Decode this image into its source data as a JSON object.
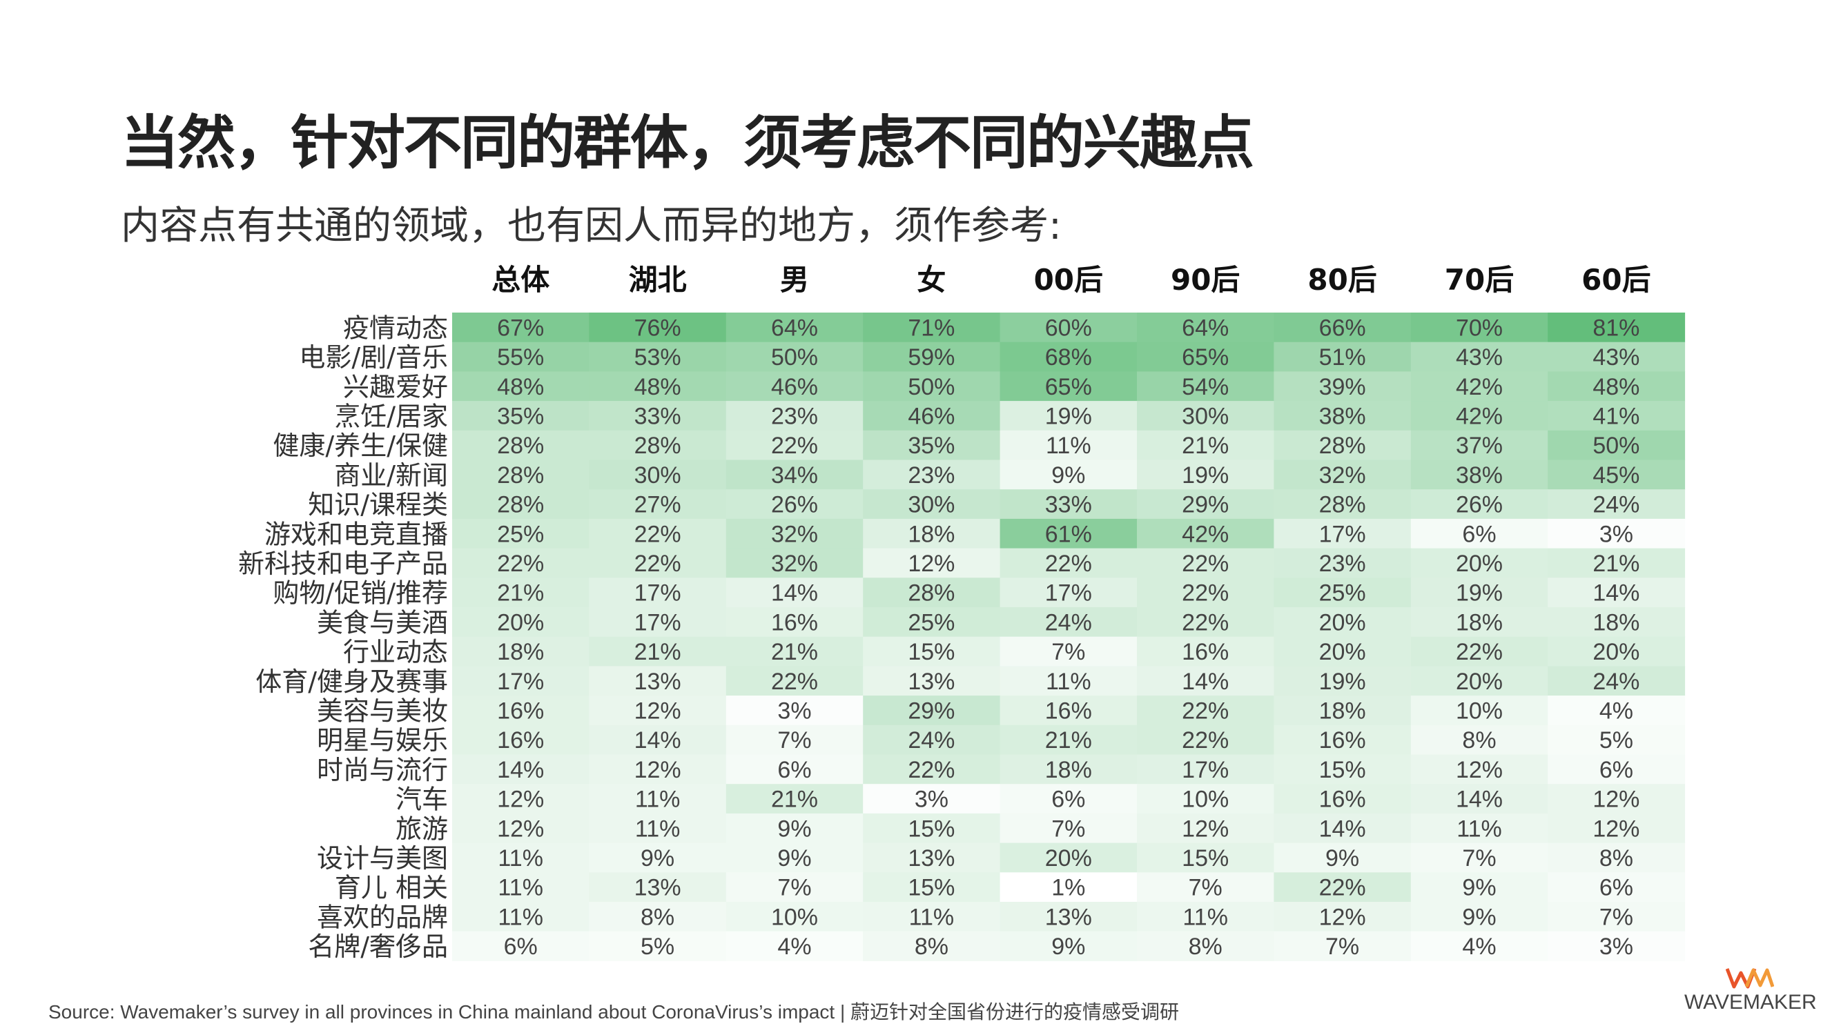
{
  "header": {
    "title": "当然，针对不同的群体，须考虑不同的兴趣点",
    "subtitle": "内容点有共通的领域，也有因人而异的地方，须作参考:"
  },
  "footer": {
    "source": "Source: Wavemaker’s survey in all provinces in China mainland about CoronaVirus’s impact | 蔚迈针对全国省份进行的疫情感受调研",
    "logo_mark": "WM",
    "logo_text": "WAVEMAKER"
  },
  "colors": {
    "heat_low": "#ffffff",
    "heat_high": "#63be7b",
    "text": "#333333"
  },
  "chart_data": {
    "type": "heatmap",
    "columns": [
      "总体",
      "湖北",
      "男",
      "女",
      "00后",
      "90后",
      "80后",
      "70后",
      "60后"
    ],
    "rows": [
      {
        "label": "疫情动态",
        "values": [
          67,
          76,
          64,
          71,
          60,
          64,
          66,
          70,
          81
        ]
      },
      {
        "label": "电影/剧/音乐",
        "values": [
          55,
          53,
          50,
          59,
          68,
          65,
          51,
          43,
          43
        ]
      },
      {
        "label": "兴趣爱好",
        "values": [
          48,
          48,
          46,
          50,
          65,
          54,
          39,
          42,
          48
        ]
      },
      {
        "label": "烹饪/居家",
        "values": [
          35,
          33,
          23,
          46,
          19,
          30,
          38,
          42,
          41
        ]
      },
      {
        "label": "健康/养生/保健",
        "values": [
          28,
          28,
          22,
          35,
          11,
          21,
          28,
          37,
          50
        ]
      },
      {
        "label": "商业/新闻",
        "values": [
          28,
          30,
          34,
          23,
          9,
          19,
          32,
          38,
          45
        ]
      },
      {
        "label": "知识/课程类",
        "values": [
          28,
          27,
          26,
          30,
          33,
          29,
          28,
          26,
          24
        ]
      },
      {
        "label": "游戏和电竞直播",
        "values": [
          25,
          22,
          32,
          18,
          61,
          42,
          17,
          6,
          3
        ]
      },
      {
        "label": "新科技和电子产品",
        "values": [
          22,
          22,
          32,
          12,
          22,
          22,
          23,
          20,
          21
        ]
      },
      {
        "label": "购物/促销/推荐",
        "values": [
          21,
          17,
          14,
          28,
          17,
          22,
          25,
          19,
          14
        ]
      },
      {
        "label": "美食与美酒",
        "values": [
          20,
          17,
          16,
          25,
          24,
          22,
          20,
          18,
          18
        ]
      },
      {
        "label": "行业动态",
        "values": [
          18,
          21,
          21,
          15,
          7,
          16,
          20,
          22,
          20
        ]
      },
      {
        "label": "体育/健身及赛事",
        "values": [
          17,
          13,
          22,
          13,
          11,
          14,
          19,
          20,
          24
        ]
      },
      {
        "label": "美容与美妆",
        "values": [
          16,
          12,
          3,
          29,
          16,
          22,
          18,
          10,
          4
        ]
      },
      {
        "label": "明星与娱乐",
        "values": [
          16,
          14,
          7,
          24,
          21,
          22,
          16,
          8,
          5
        ]
      },
      {
        "label": "时尚与流行",
        "values": [
          14,
          12,
          6,
          22,
          18,
          17,
          15,
          12,
          6
        ]
      },
      {
        "label": "汽车",
        "values": [
          12,
          11,
          21,
          3,
          6,
          10,
          16,
          14,
          12
        ]
      },
      {
        "label": "旅游",
        "values": [
          12,
          11,
          9,
          15,
          7,
          12,
          14,
          11,
          12
        ]
      },
      {
        "label": "设计与美图",
        "values": [
          11,
          9,
          9,
          13,
          20,
          15,
          9,
          7,
          8
        ]
      },
      {
        "label": "育儿 相关",
        "values": [
          11,
          13,
          7,
          15,
          1,
          7,
          22,
          9,
          6
        ]
      },
      {
        "label": "喜欢的品牌",
        "values": [
          11,
          8,
          10,
          11,
          13,
          11,
          12,
          9,
          7
        ]
      },
      {
        "label": "名牌/奢侈品",
        "values": [
          6,
          5,
          4,
          8,
          9,
          8,
          7,
          4,
          3
        ]
      }
    ],
    "unit": "%",
    "value_range": [
      0,
      100
    ]
  }
}
